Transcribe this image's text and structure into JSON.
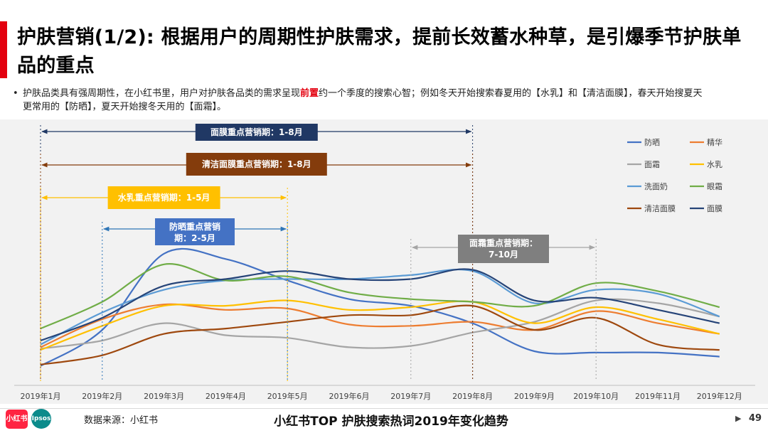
{
  "page": {
    "title": "护肤营销(1/2): 根据用户的周期性护肤需求，提前长效蓄水种草，是引爆季节护肤单品的重点",
    "note_before": "护肤品类具有强周期性，在小红书里，用户对护肤各品类的需求呈现",
    "note_highlight": "前置",
    "note_after": "约一个季度的搜索心智；例如冬天开始搜索春夏用的【水乳】和【清洁面膜】，春天开始搜夏天更常用的【防晒】，夏天开始搜冬天用的【面霜】。",
    "source": "数据来源：小红书",
    "footer_title": "小红书TOP 护肤搜索热词2019年变化趋势",
    "page_number": "49",
    "logo_xhs": "小红书",
    "logo_ipsos": "Ipsos"
  },
  "chart_data": {
    "type": "line",
    "smooth": true,
    "categories": [
      "2019年1月",
      "2019年2月",
      "2019年3月",
      "2019年4月",
      "2019年5月",
      "2019年6月",
      "2019年7月",
      "2019年8月",
      "2019年9月",
      "2019年10月",
      "2019年11月",
      "2019年12月"
    ],
    "ylim": [
      0,
      100
    ],
    "grid": false,
    "legend_position": "top-right",
    "series": [
      {
        "name": "防晒",
        "color": "#4472c4",
        "values": [
          6,
          33,
          90,
          86,
          70,
          56,
          51,
          38,
          17,
          16,
          16,
          13
        ]
      },
      {
        "name": "精华",
        "color": "#ed7d31",
        "values": [
          20,
          41,
          52,
          48,
          49,
          37,
          36,
          39,
          33,
          47,
          38,
          30
        ]
      },
      {
        "name": "面霜",
        "color": "#a5a5a5",
        "values": [
          19,
          25,
          38,
          29,
          27,
          20,
          21,
          31,
          39,
          55,
          53,
          43
        ]
      },
      {
        "name": "水乳",
        "color": "#ffc000",
        "values": [
          18,
          36,
          51,
          51,
          55,
          48,
          50,
          54,
          38,
          50,
          41,
          30
        ]
      },
      {
        "name": "洗面奶",
        "color": "#5b9bd5",
        "values": [
          22,
          46,
          63,
          70,
          71,
          71,
          74,
          77,
          53,
          63,
          60,
          43
        ]
      },
      {
        "name": "眼霜",
        "color": "#70ad47",
        "values": [
          34,
          54,
          82,
          70,
          73,
          61,
          56,
          54,
          51,
          68,
          62,
          50
        ]
      },
      {
        "name": "清洁面膜",
        "color": "#9e480e",
        "values": [
          7,
          14,
          30,
          34,
          39,
          44,
          44,
          51,
          33,
          42,
          22,
          18
        ]
      },
      {
        "name": "面膜",
        "color": "#264478",
        "values": [
          25,
          42,
          66,
          71,
          77,
          71,
          71,
          78,
          55,
          57,
          48,
          38
        ]
      }
    ],
    "annotations": [
      {
        "label": "面膜重点营销期：1-8月",
        "from": "2019年1月",
        "to": "2019年8月",
        "color": "#203864",
        "line_color": "#203864"
      },
      {
        "label": "清洁面膜重点营销期：1-8月",
        "from": "2019年1月",
        "to": "2019年8月",
        "color": "#843c0c",
        "line_color": "#843c0c"
      },
      {
        "label": "水乳重点营销期：1-5月",
        "from": "2019年1月",
        "to": "2019年5月",
        "color": "#ffc000",
        "line_color": "#ffc000"
      },
      {
        "label": "防晒重点营销期：2-5月",
        "from": "2019年2月",
        "to": "2019年5月",
        "color": "#4472c4",
        "line_color": "#2e75b6"
      },
      {
        "label": "面霜重点营销期：7-10月",
        "from": "2019年7月",
        "to": "2019年10月",
        "color": "#7f7f7f",
        "line_color": "#a5a5a5"
      }
    ]
  }
}
